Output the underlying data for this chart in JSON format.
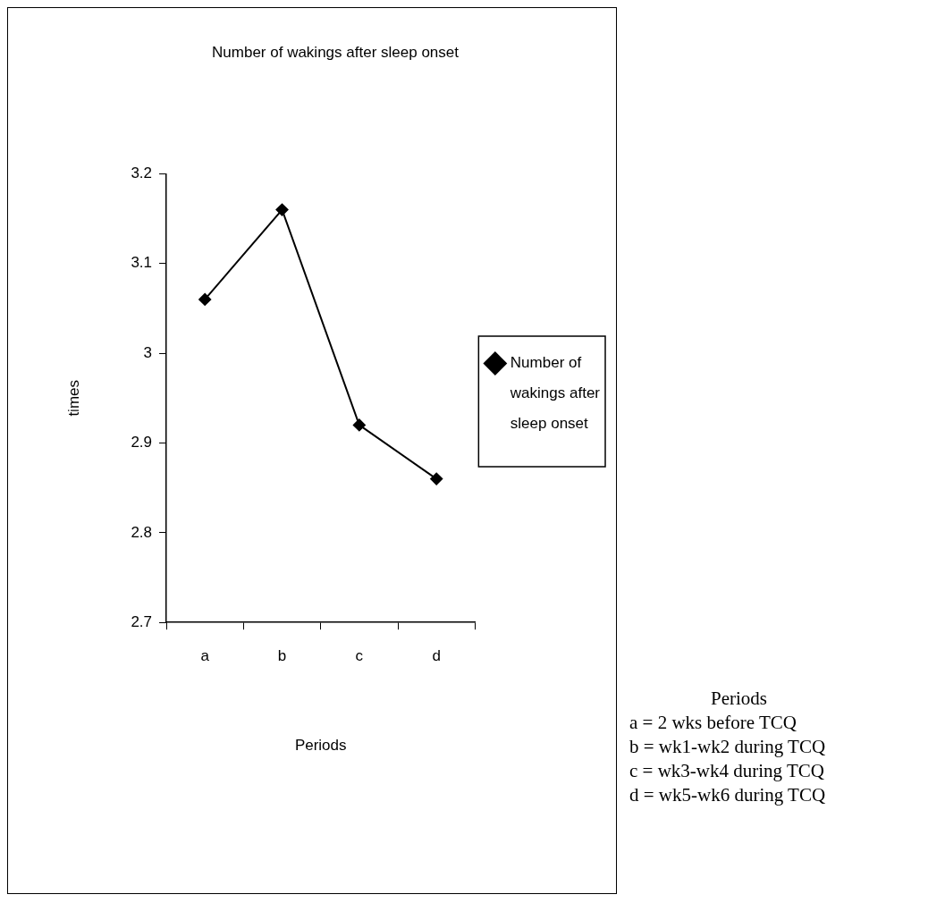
{
  "chart_data": {
    "type": "line",
    "title": "Number of wakings after sleep onset",
    "xlabel": "Periods",
    "ylabel": "times",
    "categories": [
      "a",
      "b",
      "c",
      "d"
    ],
    "series": [
      {
        "name": "Number of wakings after sleep onset",
        "color": "#000000",
        "values": [
          3.06,
          3.16,
          2.92,
          2.86
        ]
      }
    ],
    "ylim": [
      2.7,
      3.2
    ],
    "yticks": [
      {
        "value": 2.7,
        "label": "2.7"
      },
      {
        "value": 2.8,
        "label": "2.8"
      },
      {
        "value": 2.9,
        "label": "2.9"
      },
      {
        "value": 3.0,
        "label": "3"
      },
      {
        "value": 3.1,
        "label": "3.1"
      },
      {
        "value": 3.2,
        "label": "3.2"
      }
    ],
    "grid": false,
    "legend": "right",
    "marker": "diamond",
    "line_style": "solid",
    "annotations": [
      "Periods",
      "a = 2 wks before TCQ",
      "b = wk1-wk2 during TCQ",
      "c = wk3-wk4 during TCQ",
      "d = wk5-wk6 during TCQ"
    ]
  }
}
